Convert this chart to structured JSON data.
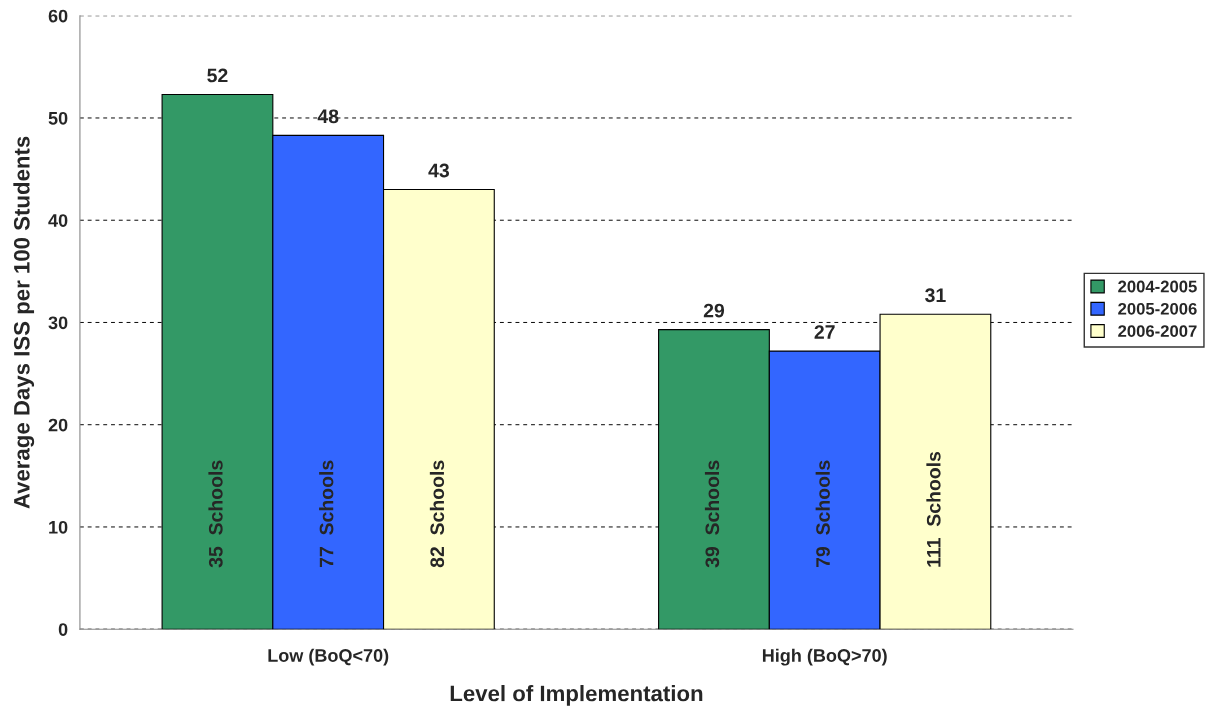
{
  "chart_data": {
    "type": "bar",
    "xlabel": "Level of Implementation",
    "ylabel": "Average Days ISS per 100 Students",
    "categories": [
      "Low (BoQ<70)",
      "High (BoQ>70)"
    ],
    "series": [
      {
        "name": "2004-2005",
        "color": "#339966",
        "values": [
          52.3,
          29.3
        ],
        "value_labels": [
          "52",
          "29"
        ]
      },
      {
        "name": "2005-2006",
        "color": "#3366ff",
        "values": [
          48.3,
          27.2
        ],
        "value_labels": [
          "48",
          "27"
        ]
      },
      {
        "name": "2006-2007",
        "color": "#ffffcc",
        "values": [
          43.0,
          30.8
        ],
        "value_labels": [
          "43",
          "31"
        ]
      }
    ],
    "annotations": [
      "35  Schools",
      "77  Schools",
      "82  Schools",
      "39  Schools",
      "79  Schools",
      "111  Schools"
    ],
    "ylim": [
      0,
      60
    ],
    "yticks": [
      0,
      10,
      20,
      30,
      40,
      50,
      60
    ],
    "grid": "y",
    "legend": "right"
  }
}
